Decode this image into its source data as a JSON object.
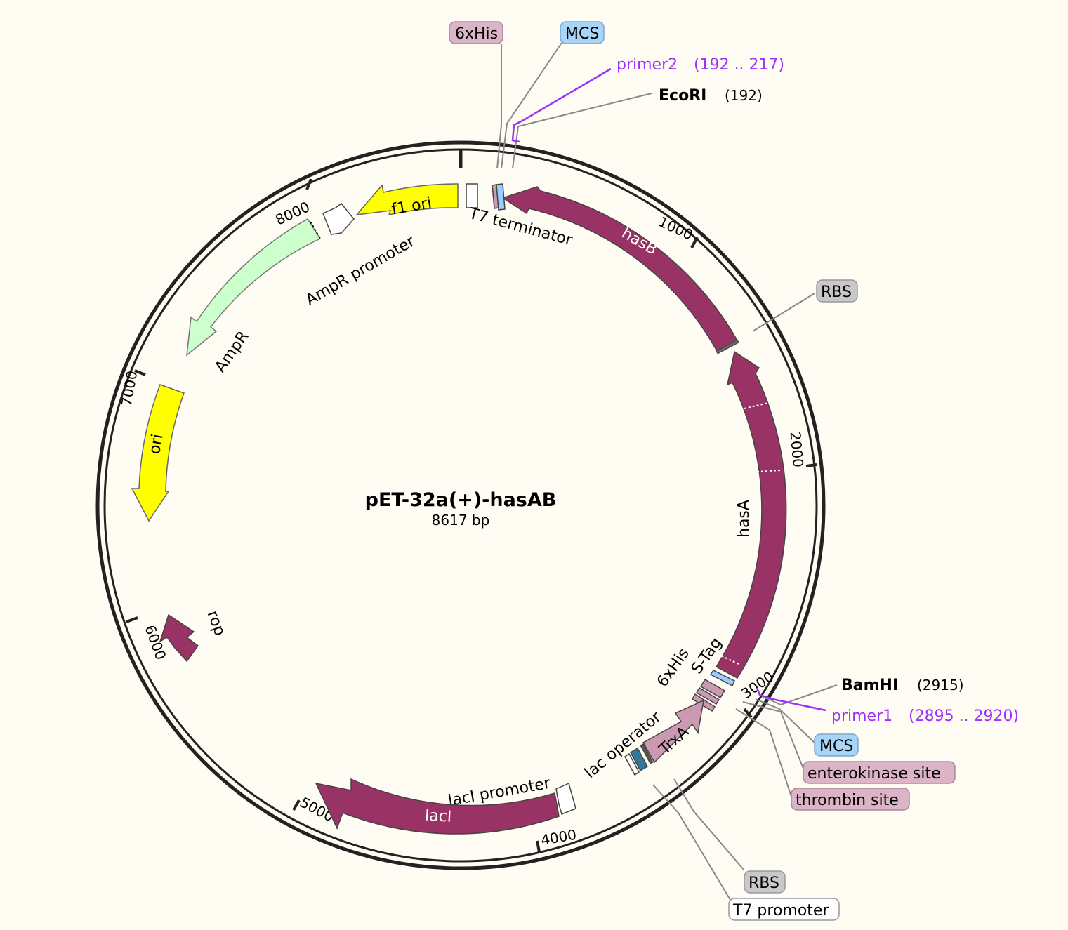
{
  "plasmid": {
    "name": "pET-32a(+)-hasAB",
    "size_label": "8617 bp"
  },
  "ticks": [
    "1000",
    "2000",
    "3000",
    "4000",
    "5000",
    "6000",
    "7000",
    "8000"
  ],
  "colors": {
    "backbone": "#222222",
    "maroon": "#993366",
    "yellow": "#ffff00",
    "ampr": "#ccffcc",
    "pink": "#cc99b3",
    "blue": "#99ccff",
    "teal": "#337799",
    "primer": "#9b30ff",
    "rbs_badge": "#c8c8c8",
    "mcs_badge": "#a8d4f8",
    "tag_badge": "#dcb4c8",
    "white_badge": "#ffffff"
  },
  "features": {
    "hasB": "hasB",
    "hasA": "hasA",
    "f1_ori": "f1 ori",
    "t7_terminator": "T7 terminator",
    "ampr_promoter": "AmpR promoter",
    "ampr": "AmpR",
    "ori": "ori",
    "rop": "rop",
    "laci": "lacI",
    "laci_promoter": "lacI promoter",
    "lac_operator": "lac operator",
    "trxa": "TrxA",
    "his_tag_inner": "6xHis",
    "s_tag": "S-Tag"
  },
  "callouts": {
    "his_top": "6xHis",
    "mcs_top": "MCS",
    "rbs_right": "RBS",
    "mcs_bottom": "MCS",
    "enterokinase": "enterokinase site",
    "thrombin": "thrombin site",
    "rbs_bottom": "RBS",
    "t7_promoter": "T7 promoter"
  },
  "sites": [
    {
      "name": "EcoRI",
      "pos": "(192)"
    },
    {
      "name": "BamHI",
      "pos": "(2915)"
    }
  ],
  "primers": [
    {
      "name": "primer2",
      "range": "(192 .. 217)"
    },
    {
      "name": "primer1",
      "range": "(2895 .. 2920)"
    }
  ]
}
